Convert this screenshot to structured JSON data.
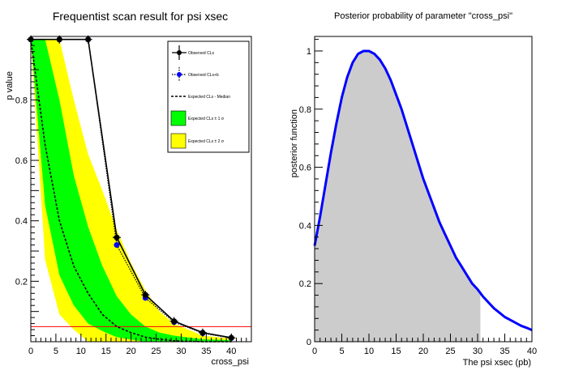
{
  "chart_data": [
    {
      "type": "line",
      "title": "Frequentist scan result for psi xsec",
      "xlabel": "cross_psi",
      "ylabel": "p value",
      "xlim": [
        0,
        44
      ],
      "ylim": [
        0,
        1.01
      ],
      "x_ticks": [
        0,
        5,
        10,
        15,
        20,
        25,
        30,
        35,
        40
      ],
      "y_ticks": [
        0.2,
        0.4,
        0.6,
        0.8
      ],
      "threshold": 0.05,
      "legend_position": "top-right",
      "legend": [
        {
          "key": "obs_cls",
          "label": "Observed CLs"
        },
        {
          "key": "obs_clsb",
          "label": "Observed CLs+b"
        },
        {
          "key": "exp_median",
          "label": "Expected CLs - Median"
        },
        {
          "key": "band1",
          "label": "Expected CLs ± 1 σ"
        },
        {
          "key": "band2",
          "label": "Expected CLs ± 2 σ"
        }
      ],
      "colors": {
        "band1": "#00ff00",
        "band2": "#ffff00",
        "observed": "#000000",
        "clsb": "#0000ff",
        "threshold": "#ff0000"
      },
      "series": [
        {
          "key": "obs_cls",
          "x": [
            0,
            5.71,
            11.43,
            17.14,
            22.86,
            28.57,
            34.29,
            40.0
          ],
          "y": [
            1.0,
            1.0,
            1.0,
            0.345,
            0.155,
            0.068,
            0.03,
            0.013
          ]
        },
        {
          "key": "obs_clsb",
          "x": [
            0,
            5.71,
            11.43,
            17.14,
            22.86,
            28.57,
            34.29,
            40.0
          ],
          "y": [
            1.0,
            1.0,
            1.0,
            0.32,
            0.145,
            0.065,
            0.028,
            0.012
          ]
        },
        {
          "key": "exp_median",
          "x": [
            0,
            2.86,
            5.71,
            8.57,
            11.43,
            14.29,
            17.14,
            20.0,
            22.86,
            25.71,
            28.57,
            34.29,
            40.0
          ],
          "y": [
            1.0,
            0.65,
            0.4,
            0.25,
            0.16,
            0.09,
            0.05,
            0.03,
            0.015,
            0.008,
            0.003,
            0.0,
            0.0
          ]
        },
        {
          "key": "band1",
          "x": [
            0,
            2.86,
            5.71,
            8.57,
            11.43,
            14.29,
            17.14,
            20.0,
            22.86,
            25.71,
            28.57,
            34.29,
            40.0
          ],
          "lower": [
            1.0,
            0.45,
            0.22,
            0.12,
            0.06,
            0.035,
            0.015,
            0.007,
            0.0,
            0.0,
            0.0,
            0.0,
            0.0
          ],
          "upper": [
            1.0,
            1.0,
            0.8,
            0.55,
            0.38,
            0.25,
            0.15,
            0.09,
            0.05,
            0.03,
            0.02,
            0.008,
            0.005
          ]
        },
        {
          "key": "band2",
          "x": [
            0,
            2.86,
            5.71,
            8.57,
            11.43,
            14.29,
            17.14,
            20.0,
            22.86,
            25.71,
            28.57,
            34.29,
            40.0
          ],
          "lower": [
            1.0,
            0.27,
            0.09,
            0.04,
            0.0,
            0.0,
            0.0,
            0.0,
            0.0,
            0.0,
            0.0,
            0.0,
            0.0
          ],
          "upper": [
            1.0,
            1.0,
            1.0,
            0.8,
            0.62,
            0.5,
            0.37,
            0.26,
            0.17,
            0.1,
            0.06,
            0.02,
            0.01
          ]
        }
      ]
    },
    {
      "type": "area",
      "title": "Posterior probability of parameter \"cross_psi\"",
      "xlabel": "The psi xsec (pb)",
      "ylabel": "posterior function",
      "xlim": [
        0,
        40
      ],
      "ylim": [
        0,
        1.05
      ],
      "x_ticks": [
        0,
        5,
        10,
        15,
        20,
        25,
        30,
        35,
        40
      ],
      "y_ticks": [
        0,
        0.2,
        0.4,
        0.6,
        0.8,
        1
      ],
      "shade_until": 30.5,
      "colors": {
        "line": "#0000ff",
        "shade": "#cccccc"
      },
      "series": [
        {
          "key": "posterior",
          "x": [
            0,
            1,
            2,
            3,
            4,
            5,
            6,
            7,
            8,
            9,
            10,
            11,
            12,
            13,
            14,
            15,
            16,
            17,
            18,
            19,
            20,
            21,
            22,
            23,
            24,
            25,
            26,
            27,
            28,
            29,
            30,
            31,
            32,
            33,
            34,
            35,
            36,
            37,
            38,
            39,
            40
          ],
          "y": [
            0.33,
            0.43,
            0.54,
            0.65,
            0.75,
            0.84,
            0.91,
            0.96,
            0.99,
            1.0,
            1.0,
            0.99,
            0.97,
            0.94,
            0.9,
            0.85,
            0.8,
            0.74,
            0.68,
            0.62,
            0.56,
            0.51,
            0.46,
            0.41,
            0.37,
            0.33,
            0.29,
            0.26,
            0.23,
            0.2,
            0.18,
            0.155,
            0.135,
            0.115,
            0.1,
            0.085,
            0.075,
            0.065,
            0.055,
            0.048,
            0.04
          ]
        }
      ]
    }
  ]
}
